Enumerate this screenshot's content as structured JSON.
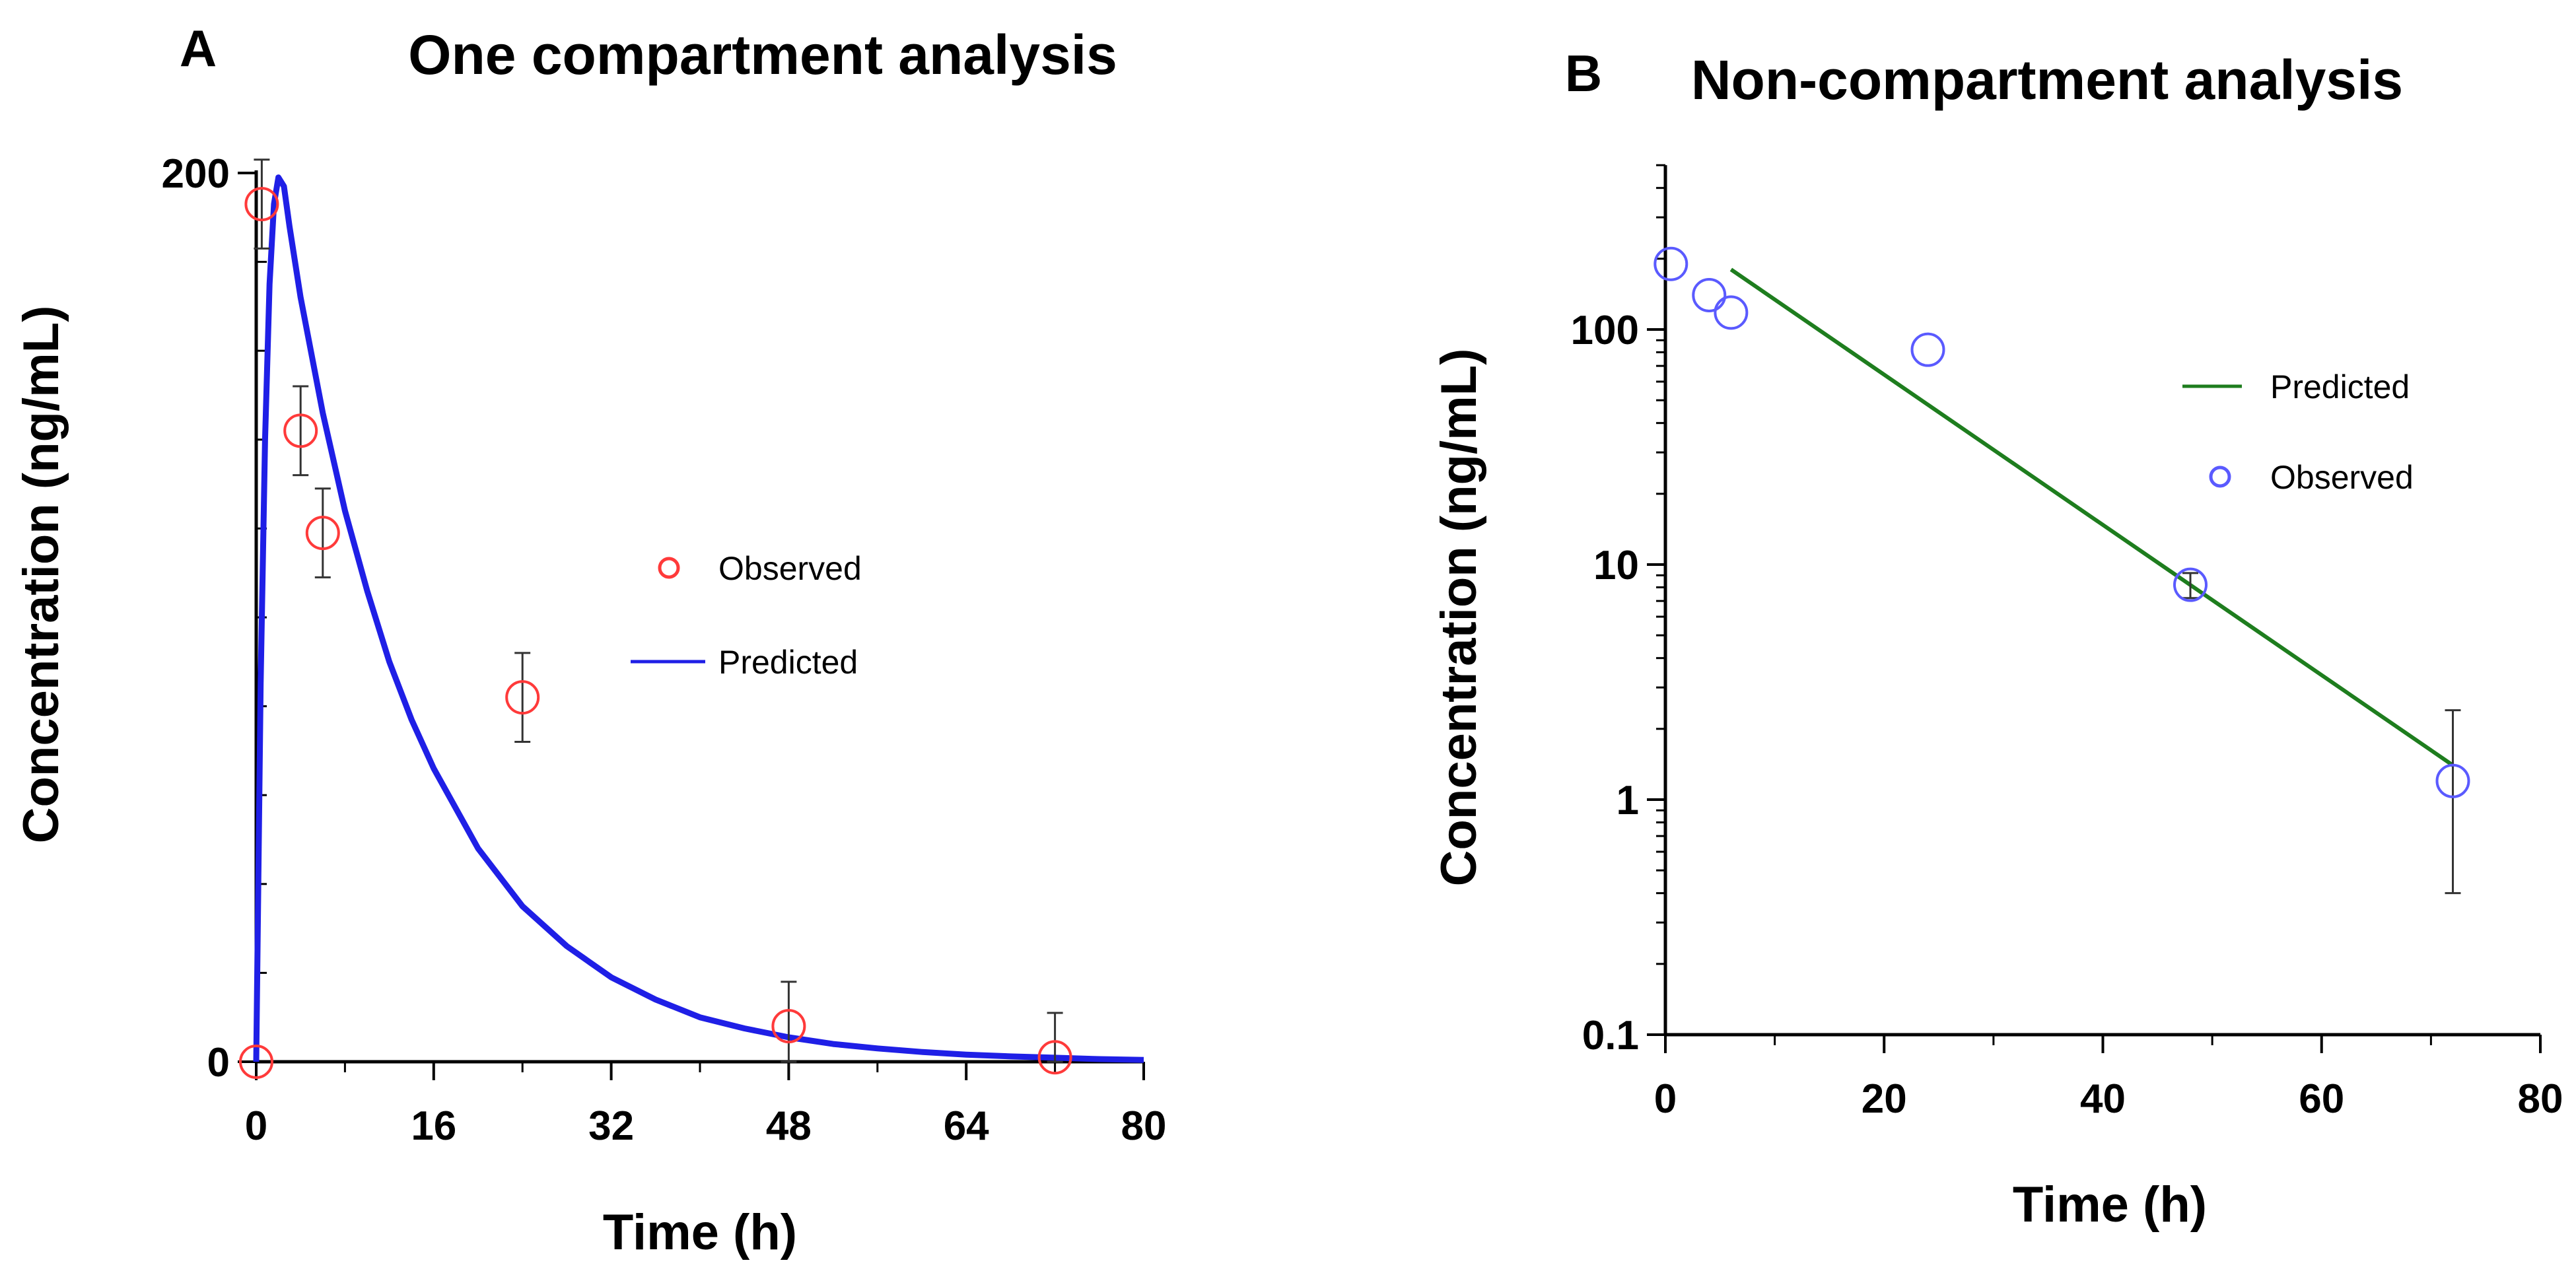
{
  "chart_data": [
    {
      "type": "line",
      "panel": "A",
      "title": "One compartment analysis",
      "xlabel": "Time (h)",
      "ylabel": "Concentration (ng/mL)",
      "xlim": [
        0,
        80
      ],
      "ylim": [
        0,
        200
      ],
      "yscale": "linear",
      "xticks": [
        "0",
        "16",
        "32",
        "48",
        "64",
        "80"
      ],
      "yticks": [
        "0",
        "200"
      ],
      "legend": "center-right",
      "legend_order": [
        "Observed",
        "Predicted"
      ],
      "series": [
        {
          "name": "Observed",
          "kind": "scatter",
          "color": "#ff3a3a",
          "points": [
            {
              "x": 0,
              "y": 0
            },
            {
              "x": 0.5,
              "y": 193,
              "err": 10
            },
            {
              "x": 4,
              "y": 142,
              "err": 10
            },
            {
              "x": 6,
              "y": 119,
              "err": 10
            },
            {
              "x": 24,
              "y": 82,
              "err": 10
            },
            {
              "x": 48,
              "y": 8,
              "err": 10
            },
            {
              "x": 72,
              "y": 1,
              "err": 10
            }
          ]
        },
        {
          "name": "Predicted",
          "kind": "line",
          "color": "#1f1fe6",
          "points": [
            {
              "x": 0,
              "y": 0
            },
            {
              "x": 0.4,
              "y": 85
            },
            {
              "x": 0.8,
              "y": 140
            },
            {
              "x": 1.2,
              "y": 175
            },
            {
              "x": 1.6,
              "y": 193
            },
            {
              "x": 2,
              "y": 199
            },
            {
              "x": 2.5,
              "y": 197
            },
            {
              "x": 3,
              "y": 188
            },
            {
              "x": 4,
              "y": 172
            },
            {
              "x": 6,
              "y": 146
            },
            {
              "x": 8,
              "y": 124
            },
            {
              "x": 10,
              "y": 106
            },
            {
              "x": 12,
              "y": 90
            },
            {
              "x": 14,
              "y": 77
            },
            {
              "x": 16,
              "y": 66
            },
            {
              "x": 20,
              "y": 48
            },
            {
              "x": 24,
              "y": 35
            },
            {
              "x": 28,
              "y": 26
            },
            {
              "x": 32,
              "y": 19
            },
            {
              "x": 36,
              "y": 14
            },
            {
              "x": 40,
              "y": 10
            },
            {
              "x": 44,
              "y": 7.5
            },
            {
              "x": 48,
              "y": 5.5
            },
            {
              "x": 52,
              "y": 4
            },
            {
              "x": 56,
              "y": 3
            },
            {
              "x": 60,
              "y": 2.2
            },
            {
              "x": 64,
              "y": 1.6
            },
            {
              "x": 68,
              "y": 1.2
            },
            {
              "x": 72,
              "y": 0.9
            },
            {
              "x": 76,
              "y": 0.6
            },
            {
              "x": 80,
              "y": 0.4
            }
          ]
        }
      ]
    },
    {
      "type": "line",
      "panel": "B",
      "title": "Non-compartment analysis",
      "xlabel": "Time (h)",
      "ylabel": "Concentration (ng/mL)",
      "xlim": [
        0,
        80
      ],
      "ylim": [
        0.1,
        500
      ],
      "yscale": "log",
      "xticks": [
        "0",
        "20",
        "40",
        "60",
        "80"
      ],
      "yticks": [
        "0.1",
        "1",
        "10",
        "100"
      ],
      "legend": "top-right",
      "legend_order": [
        "Predicted",
        "Observed"
      ],
      "series": [
        {
          "name": "Predicted",
          "kind": "line",
          "color": "#1e7d1e",
          "points": [
            {
              "x": 6,
              "y": 180
            },
            {
              "x": 72,
              "y": 1.4
            }
          ]
        },
        {
          "name": "Observed",
          "kind": "scatter",
          "color": "#5a5aff",
          "points": [
            {
              "x": 0.5,
              "y": 190
            },
            {
              "x": 4,
              "y": 140
            },
            {
              "x": 6,
              "y": 118
            },
            {
              "x": 24,
              "y": 82
            },
            {
              "x": 48,
              "y": 8.2,
              "err_low": 7.2,
              "err_high": 9.2
            },
            {
              "x": 72,
              "y": 1.2,
              "err_low": 0.4,
              "err_high": 2.4
            }
          ]
        }
      ]
    }
  ]
}
